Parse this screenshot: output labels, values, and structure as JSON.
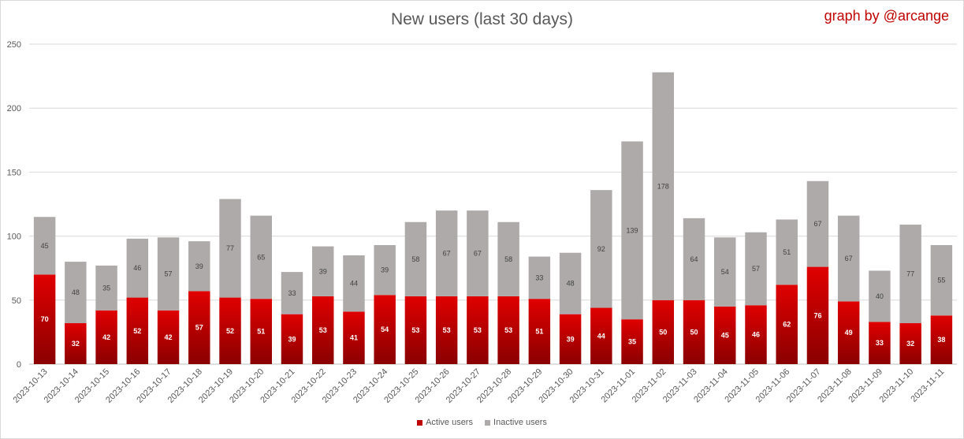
{
  "chart_data": {
    "type": "bar",
    "stacked": true,
    "title": "New users (last 30 days)",
    "credit": "graph by @arcange",
    "xlabel": "",
    "ylabel": "",
    "ylim": [
      0,
      250
    ],
    "yticks": [
      0,
      50,
      100,
      150,
      200,
      250
    ],
    "grid": true,
    "legend_position": "bottom",
    "categories": [
      "2023-10-13",
      "2023-10-14",
      "2023-10-15",
      "2023-10-16",
      "2023-10-17",
      "2023-10-18",
      "2023-10-19",
      "2023-10-20",
      "2023-10-21",
      "2023-10-22",
      "2023-10-23",
      "2023-10-24",
      "2023-10-25",
      "2023-10-26",
      "2023-10-27",
      "2023-10-28",
      "2023-10-29",
      "2023-10-30",
      "2023-10-31",
      "2023-11-01",
      "2023-11-02",
      "2023-11-03",
      "2023-11-04",
      "2023-11-05",
      "2023-11-06",
      "2023-11-07",
      "2023-11-08",
      "2023-11-09",
      "2023-11-10",
      "2023-11-11"
    ],
    "series": [
      {
        "name": "Active users",
        "color": "#c00000",
        "values": [
          70,
          32,
          42,
          52,
          42,
          57,
          52,
          51,
          39,
          53,
          41,
          54,
          53,
          53,
          53,
          53,
          51,
          39,
          44,
          35,
          50,
          50,
          45,
          46,
          62,
          76,
          49,
          33,
          32,
          38
        ]
      },
      {
        "name": "Inactive users",
        "color": "#aeaaaa",
        "values": [
          45,
          48,
          35,
          46,
          57,
          39,
          77,
          65,
          33,
          39,
          44,
          39,
          58,
          67,
          67,
          58,
          33,
          48,
          92,
          139,
          178,
          64,
          54,
          57,
          51,
          67,
          67,
          40,
          77,
          55
        ]
      }
    ]
  }
}
